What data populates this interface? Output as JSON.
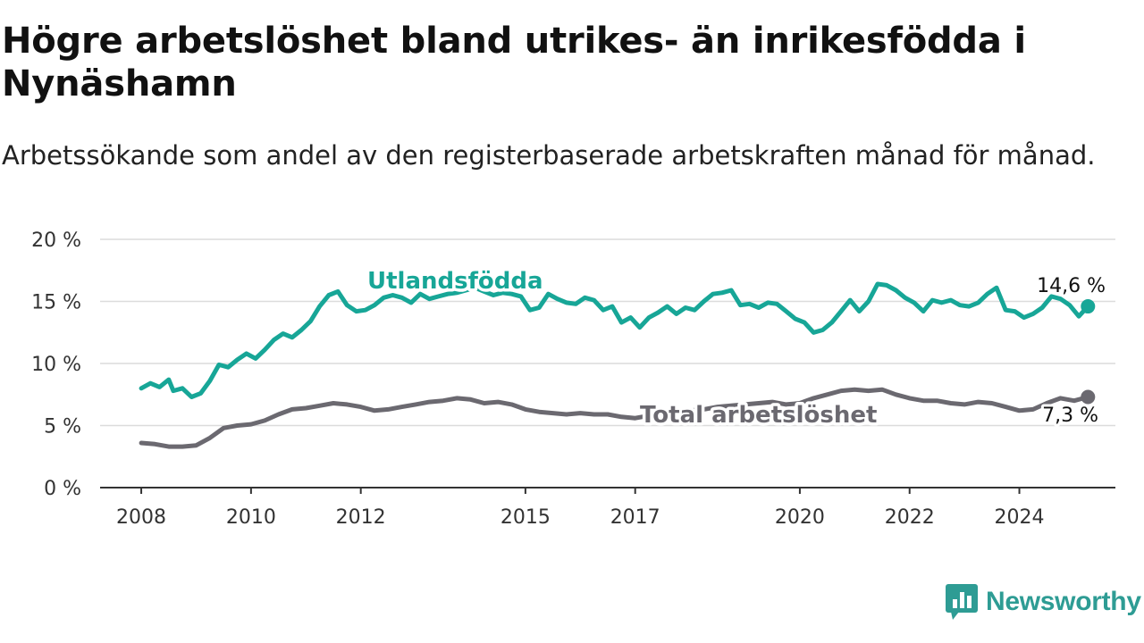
{
  "header": {
    "title": "Högre arbetslöshet bland utrikes- än inrikesfödda i Nynäshamn",
    "subtitle": "Arbetssökande som andel av den registerbaserade arbetskraften månad för månad."
  },
  "brand": {
    "name": "Newsworthy",
    "icon": "newsworthy-logo-icon",
    "color": "#2e9c94"
  },
  "chart_data": {
    "type": "line",
    "y_unit": "%",
    "ylim": [
      0,
      20
    ],
    "y_ticks": [
      0,
      5,
      10,
      15,
      20
    ],
    "y_tick_labels": [
      "0 %",
      "5 %",
      "10 %",
      "15 %",
      "20 %"
    ],
    "x_ticks": [
      2008,
      2010,
      2012,
      2015,
      2017,
      2020,
      2022,
      2024
    ],
    "x_tick_labels": [
      "2008",
      "2010",
      "2012",
      "2015",
      "2017",
      "2020",
      "2022",
      "2024"
    ],
    "grid": "horizontal",
    "series": [
      {
        "name": "Utlandsfödda",
        "color": "#17a697",
        "end_label": "14,6 %",
        "points": [
          [
            "2008-01",
            8.0
          ],
          [
            "2008-03",
            8.4
          ],
          [
            "2008-05",
            8.1
          ],
          [
            "2008-07",
            8.7
          ],
          [
            "2008-08",
            7.8
          ],
          [
            "2008-10",
            8.0
          ],
          [
            "2008-12",
            7.3
          ],
          [
            "2009-02",
            7.6
          ],
          [
            "2009-04",
            8.6
          ],
          [
            "2009-06",
            9.9
          ],
          [
            "2009-08",
            9.7
          ],
          [
            "2009-10",
            10.3
          ],
          [
            "2009-12",
            10.8
          ],
          [
            "2010-02",
            10.4
          ],
          [
            "2010-04",
            11.1
          ],
          [
            "2010-06",
            11.9
          ],
          [
            "2010-08",
            12.4
          ],
          [
            "2010-10",
            12.1
          ],
          [
            "2010-12",
            12.7
          ],
          [
            "2011-02",
            13.4
          ],
          [
            "2011-04",
            14.6
          ],
          [
            "2011-06",
            15.5
          ],
          [
            "2011-08",
            15.8
          ],
          [
            "2011-10",
            14.7
          ],
          [
            "2011-12",
            14.2
          ],
          [
            "2012-02",
            14.3
          ],
          [
            "2012-04",
            14.7
          ],
          [
            "2012-06",
            15.3
          ],
          [
            "2012-08",
            15.5
          ],
          [
            "2012-10",
            15.3
          ],
          [
            "2012-12",
            14.9
          ],
          [
            "2013-02",
            15.6
          ],
          [
            "2013-04",
            15.2
          ],
          [
            "2013-06",
            15.4
          ],
          [
            "2013-08",
            15.6
          ],
          [
            "2013-10",
            15.7
          ],
          [
            "2013-12",
            15.9
          ],
          [
            "2014-02",
            16.1
          ],
          [
            "2014-04",
            15.8
          ],
          [
            "2014-06",
            15.5
          ],
          [
            "2014-08",
            15.7
          ],
          [
            "2014-10",
            15.6
          ],
          [
            "2014-12",
            15.4
          ],
          [
            "2015-02",
            14.3
          ],
          [
            "2015-04",
            14.5
          ],
          [
            "2015-06",
            15.6
          ],
          [
            "2015-08",
            15.2
          ],
          [
            "2015-10",
            14.9
          ],
          [
            "2015-12",
            14.8
          ],
          [
            "2016-02",
            15.3
          ],
          [
            "2016-04",
            15.1
          ],
          [
            "2016-06",
            14.3
          ],
          [
            "2016-08",
            14.6
          ],
          [
            "2016-10",
            13.3
          ],
          [
            "2016-12",
            13.7
          ],
          [
            "2017-02",
            12.9
          ],
          [
            "2017-04",
            13.7
          ],
          [
            "2017-06",
            14.1
          ],
          [
            "2017-08",
            14.6
          ],
          [
            "2017-10",
            14.0
          ],
          [
            "2017-12",
            14.5
          ],
          [
            "2018-02",
            14.3
          ],
          [
            "2018-04",
            15.0
          ],
          [
            "2018-06",
            15.6
          ],
          [
            "2018-08",
            15.7
          ],
          [
            "2018-10",
            15.9
          ],
          [
            "2018-12",
            14.7
          ],
          [
            "2019-02",
            14.8
          ],
          [
            "2019-04",
            14.5
          ],
          [
            "2019-06",
            14.9
          ],
          [
            "2019-08",
            14.8
          ],
          [
            "2019-10",
            14.2
          ],
          [
            "2019-12",
            13.6
          ],
          [
            "2020-02",
            13.3
          ],
          [
            "2020-04",
            12.5
          ],
          [
            "2020-06",
            12.7
          ],
          [
            "2020-08",
            13.3
          ],
          [
            "2020-10",
            14.2
          ],
          [
            "2020-12",
            15.1
          ],
          [
            "2021-02",
            14.2
          ],
          [
            "2021-04",
            15.0
          ],
          [
            "2021-06",
            16.4
          ],
          [
            "2021-08",
            16.3
          ],
          [
            "2021-10",
            15.9
          ],
          [
            "2021-12",
            15.3
          ],
          [
            "2022-02",
            14.9
          ],
          [
            "2022-04",
            14.2
          ],
          [
            "2022-06",
            15.1
          ],
          [
            "2022-08",
            14.9
          ],
          [
            "2022-10",
            15.1
          ],
          [
            "2022-12",
            14.7
          ],
          [
            "2023-02",
            14.6
          ],
          [
            "2023-04",
            14.9
          ],
          [
            "2023-06",
            15.6
          ],
          [
            "2023-08",
            16.1
          ],
          [
            "2023-10",
            14.3
          ],
          [
            "2023-12",
            14.2
          ],
          [
            "2024-02",
            13.7
          ],
          [
            "2024-04",
            14.0
          ],
          [
            "2024-06",
            14.5
          ],
          [
            "2024-08",
            15.4
          ],
          [
            "2024-10",
            15.2
          ],
          [
            "2024-12",
            14.7
          ],
          [
            "2025-02",
            13.8
          ],
          [
            "2025-04",
            14.6
          ]
        ]
      },
      {
        "name": "Total arbetslöshet",
        "color": "#6b6970",
        "end_label": "7,3 %",
        "points": [
          [
            "2008-01",
            3.6
          ],
          [
            "2008-04",
            3.5
          ],
          [
            "2008-07",
            3.3
          ],
          [
            "2008-10",
            3.3
          ],
          [
            "2009-01",
            3.4
          ],
          [
            "2009-04",
            4.0
          ],
          [
            "2009-07",
            4.8
          ],
          [
            "2009-10",
            5.0
          ],
          [
            "2010-01",
            5.1
          ],
          [
            "2010-04",
            5.4
          ],
          [
            "2010-07",
            5.9
          ],
          [
            "2010-10",
            6.3
          ],
          [
            "2011-01",
            6.4
          ],
          [
            "2011-04",
            6.6
          ],
          [
            "2011-07",
            6.8
          ],
          [
            "2011-10",
            6.7
          ],
          [
            "2012-01",
            6.5
          ],
          [
            "2012-04",
            6.2
          ],
          [
            "2012-07",
            6.3
          ],
          [
            "2012-10",
            6.5
          ],
          [
            "2013-01",
            6.7
          ],
          [
            "2013-04",
            6.9
          ],
          [
            "2013-07",
            7.0
          ],
          [
            "2013-10",
            7.2
          ],
          [
            "2014-01",
            7.1
          ],
          [
            "2014-04",
            6.8
          ],
          [
            "2014-07",
            6.9
          ],
          [
            "2014-10",
            6.7
          ],
          [
            "2015-01",
            6.3
          ],
          [
            "2015-04",
            6.1
          ],
          [
            "2015-07",
            6.0
          ],
          [
            "2015-10",
            5.9
          ],
          [
            "2016-01",
            6.0
          ],
          [
            "2016-04",
            5.9
          ],
          [
            "2016-07",
            5.9
          ],
          [
            "2016-10",
            5.7
          ],
          [
            "2017-01",
            5.6
          ],
          [
            "2017-04",
            5.8
          ],
          [
            "2017-07",
            6.0
          ],
          [
            "2017-10",
            6.1
          ],
          [
            "2018-01",
            6.2
          ],
          [
            "2018-04",
            6.3
          ],
          [
            "2018-07",
            6.5
          ],
          [
            "2018-10",
            6.6
          ],
          [
            "2019-01",
            6.7
          ],
          [
            "2019-04",
            6.8
          ],
          [
            "2019-07",
            6.9
          ],
          [
            "2019-10",
            6.7
          ],
          [
            "2020-01",
            6.8
          ],
          [
            "2020-04",
            7.2
          ],
          [
            "2020-07",
            7.5
          ],
          [
            "2020-10",
            7.8
          ],
          [
            "2021-01",
            7.9
          ],
          [
            "2021-04",
            7.8
          ],
          [
            "2021-07",
            7.9
          ],
          [
            "2021-10",
            7.5
          ],
          [
            "2022-01",
            7.2
          ],
          [
            "2022-04",
            7.0
          ],
          [
            "2022-07",
            7.0
          ],
          [
            "2022-10",
            6.8
          ],
          [
            "2023-01",
            6.7
          ],
          [
            "2023-04",
            6.9
          ],
          [
            "2023-07",
            6.8
          ],
          [
            "2023-10",
            6.5
          ],
          [
            "2024-01",
            6.2
          ],
          [
            "2024-04",
            6.3
          ],
          [
            "2024-07",
            6.8
          ],
          [
            "2024-10",
            7.2
          ],
          [
            "2025-01",
            7.0
          ],
          [
            "2025-04",
            7.3
          ]
        ]
      }
    ]
  }
}
